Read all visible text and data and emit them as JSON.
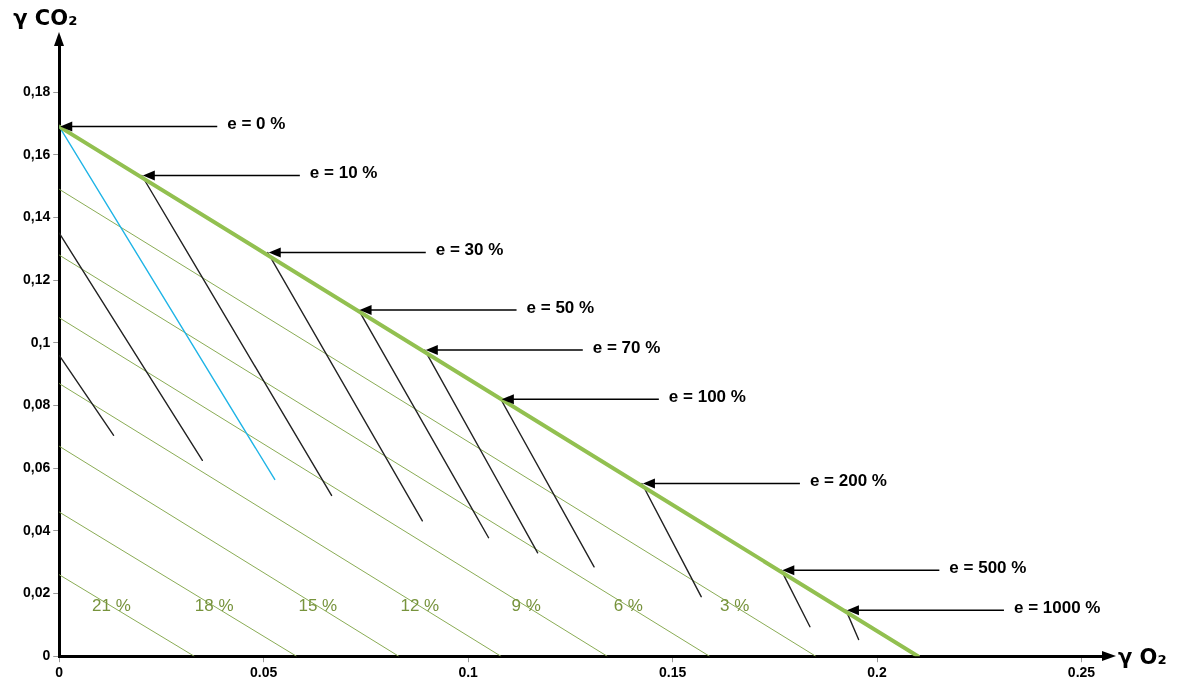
{
  "chart_data": {
    "type": "line",
    "xlabel": "γ O₂",
    "ylabel": "γ CO₂",
    "marker": "none",
    "line_style": "solid",
    "grid": false,
    "legend": false,
    "xlim": [
      0,
      0.256
    ],
    "ylim": [
      0,
      0.196
    ],
    "xticks": [
      0,
      0.05,
      0.1,
      0.15,
      0.2,
      0.25
    ],
    "yticks": [
      0,
      {
        "value": 0.02,
        "label": "0,02"
      },
      {
        "value": 0.04,
        "label": "0,04"
      },
      {
        "value": 0.06,
        "label": "0,06"
      },
      {
        "value": 0.08,
        "label": "0,08"
      },
      {
        "value": 0.1,
        "label": "0,1"
      },
      {
        "value": 0.12,
        "label": "0,12"
      },
      {
        "value": 0.14,
        "label": "0,14"
      },
      {
        "value": 0.16,
        "label": "0,16"
      },
      {
        "value": 0.18,
        "label": "0,18"
      }
    ],
    "series": [
      {
        "color": "#92c050",
        "x": [
          0,
          0.21
        ],
        "values": [
          0.169,
          0
        ]
      },
      {
        "color": "#1fb4e6",
        "x": [
          0,
          0.0527
        ],
        "values": [
          0.169,
          0.0564
        ]
      },
      {
        "color": "#222222",
        "x": [
          0,
          0.0133
        ],
        "values": [
          0.096,
          0.0705
        ]
      },
      {
        "color": "#222222",
        "x": [
          0,
          0.035
        ],
        "values": [
          0.135,
          0.0625
        ]
      },
      {
        "color": "#222222",
        "x": [
          0.0202,
          0.0666
        ],
        "values": [
          0.1534,
          0.0513
        ]
      },
      {
        "color": "#222222",
        "x": [
          0.051,
          0.0888
        ],
        "values": [
          0.1288,
          0.0432
        ]
      },
      {
        "color": "#222222",
        "x": [
          0.0732,
          0.105
        ],
        "values": [
          0.1105,
          0.0378
        ]
      },
      {
        "color": "#222222",
        "x": [
          0.0894,
          0.117
        ],
        "values": [
          0.0977,
          0.033
        ]
      },
      {
        "color": "#222222",
        "x": [
          0.108,
          0.1308
        ],
        "values": [
          0.082,
          0.0285
        ]
      },
      {
        "color": "#222222",
        "x": [
          0.1425,
          0.157
        ],
        "values": [
          0.0551,
          0.019
        ]
      },
      {
        "color": "#222222",
        "x": [
          0.1766,
          0.1836
        ],
        "values": [
          0.0274,
          0.0094
        ]
      },
      {
        "color": "#222222",
        "x": [
          0.1924,
          0.1955
        ],
        "values": [
          0.0147,
          0.0053
        ]
      },
      {
        "name": "21 %",
        "color": "#8aac55",
        "x": [
          0,
          0.033
        ],
        "values": [
          0.026,
          0
        ]
      },
      {
        "name": "18 %",
        "color": "#8aac55",
        "x": [
          0,
          0.058
        ],
        "values": [
          0.046,
          0
        ]
      },
      {
        "name": "15 %",
        "color": "#8aac55",
        "x": [
          0,
          0.083
        ],
        "values": [
          0.067,
          0
        ]
      },
      {
        "name": "12 %",
        "color": "#8aac55",
        "x": [
          0,
          0.108
        ],
        "values": [
          0.087,
          0
        ]
      },
      {
        "name": "9 %",
        "color": "#8aac55",
        "x": [
          0,
          0.134
        ],
        "values": [
          0.108,
          0
        ]
      },
      {
        "name": "6 %",
        "color": "#8aac55",
        "x": [
          0,
          0.159
        ],
        "values": [
          0.128,
          0
        ]
      },
      {
        "name": "3 %",
        "color": "#8aac55",
        "x": [
          0,
          0.185
        ],
        "values": [
          0.149,
          0
        ]
      }
    ],
    "annotations": [
      {
        "text": "e = 0 %",
        "x": 0,
        "y": 0.169
      },
      {
        "text": "e = 10 %",
        "x": 0.0202,
        "y": 0.1534
      },
      {
        "text": "e = 30 %",
        "x": 0.051,
        "y": 0.1288
      },
      {
        "text": "e = 50 %",
        "x": 0.0732,
        "y": 0.1105
      },
      {
        "text": "e = 70 %",
        "x": 0.0894,
        "y": 0.0977
      },
      {
        "text": "e = 100 %",
        "x": 0.108,
        "y": 0.082
      },
      {
        "text": "e = 200 %",
        "x": 0.1425,
        "y": 0.0551
      },
      {
        "text": "e = 500 %",
        "x": 0.1766,
        "y": 0.0274
      },
      {
        "text": "e = 1000 %",
        "x": 0.1924,
        "y": 0.0147
      }
    ]
  }
}
